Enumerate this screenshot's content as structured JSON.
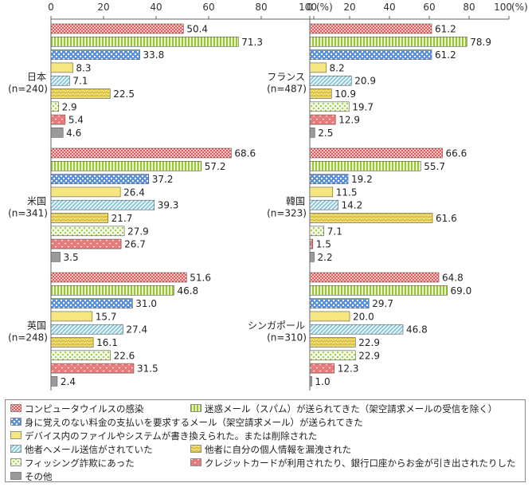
{
  "axis": {
    "ticks": [
      "0",
      "20",
      "40",
      "60",
      "80",
      "100"
    ],
    "unit": "(%)"
  },
  "series": [
    {
      "key": "virus",
      "label": "コンピュータウイルスの感染",
      "pattern": "grid",
      "color": "#e05a5a"
    },
    {
      "key": "spam",
      "label": "迷惑メール（スパム）が送られてきた（架空請求メールの受信を除く）",
      "pattern": "vstripe",
      "color": "#9bc43a"
    },
    {
      "key": "billing",
      "label": "身に覚えのない料金の支払いを要求するメール（架空請求メール）が送られてきた",
      "pattern": "dots",
      "color": "#5b8fd6"
    },
    {
      "key": "device",
      "label": "デバイス内のファイルやシステムが書き換えられた。または削除された",
      "pattern": "solid",
      "color": "#f6e682"
    },
    {
      "key": "sent",
      "label": "他者へメール送信がされていた",
      "pattern": "hatch",
      "color": "#6fb9cf"
    },
    {
      "key": "leak",
      "label": "他者に自分の個人情報を漏洩された",
      "pattern": "zigzag",
      "color": "#d9bf3c"
    },
    {
      "key": "phishing",
      "label": "フィッシング詐欺にあった",
      "pattern": "dotgrid",
      "color": "#a4cc58"
    },
    {
      "key": "card",
      "label": "クレジットカードが利用されたり、銀行口座からお金が引き出されたりした",
      "pattern": "dash",
      "color": "#e77a7a"
    },
    {
      "key": "other",
      "label": "その他",
      "pattern": "gray",
      "color": "#9a9a9a"
    }
  ],
  "chart_data": {
    "type": "bar",
    "orientation": "horizontal",
    "xlim": [
      0,
      100
    ],
    "groups": [
      {
        "country": "日本",
        "n": "(n=240)",
        "values": [
          50.4,
          71.3,
          33.8,
          8.3,
          7.1,
          22.5,
          2.9,
          5.4,
          4.6
        ],
        "labels": [
          "50.4",
          "71.3",
          "33.8",
          "8.3",
          "7.1",
          "22.5",
          "2.9",
          "5.4",
          "4.6"
        ]
      },
      {
        "country": "米国",
        "n": "(n=341)",
        "values": [
          68.6,
          57.2,
          37.2,
          26.4,
          39.3,
          21.7,
          27.9,
          26.7,
          3.5
        ],
        "labels": [
          "68.6",
          "57.2",
          "37.2",
          "26.4",
          "39.3",
          "21.7",
          "27.9",
          "26.7",
          "3.5"
        ]
      },
      {
        "country": "英国",
        "n": "(n=248)",
        "values": [
          51.6,
          46.8,
          31.0,
          15.7,
          27.4,
          16.1,
          22.6,
          31.5,
          2.4
        ],
        "labels": [
          "51.6",
          "46.8",
          "31.0",
          "15.7",
          "27.4",
          "16.1",
          "22.6",
          "31.5",
          "2.4"
        ]
      },
      {
        "country": "フランス",
        "n": "(n=487)",
        "values": [
          61.2,
          78.9,
          61.2,
          8.2,
          20.9,
          10.9,
          19.7,
          12.9,
          2.5
        ],
        "labels": [
          "61.2",
          "78.9",
          "61.2",
          "8.2",
          "20.9",
          "10.9",
          "19.7",
          "12.9",
          "2.5"
        ]
      },
      {
        "country": "韓国",
        "n": "(n=323)",
        "values": [
          66.6,
          55.7,
          19.2,
          11.5,
          14.2,
          61.6,
          7.1,
          1.5,
          2.2
        ],
        "labels": [
          "66.6",
          "55.7",
          "19.2",
          "11.5",
          "14.2",
          "61.6",
          "7.1",
          "1.5",
          "2.2"
        ]
      },
      {
        "country": "シンガポール",
        "n": "(n=310)",
        "values": [
          64.8,
          69.0,
          29.7,
          20.0,
          46.8,
          22.9,
          22.9,
          12.3,
          1.0
        ],
        "labels": [
          "64.8",
          "69.0",
          "29.7",
          "20.0",
          "46.8",
          "22.9",
          "22.9",
          "12.3",
          "1.0"
        ]
      }
    ]
  }
}
